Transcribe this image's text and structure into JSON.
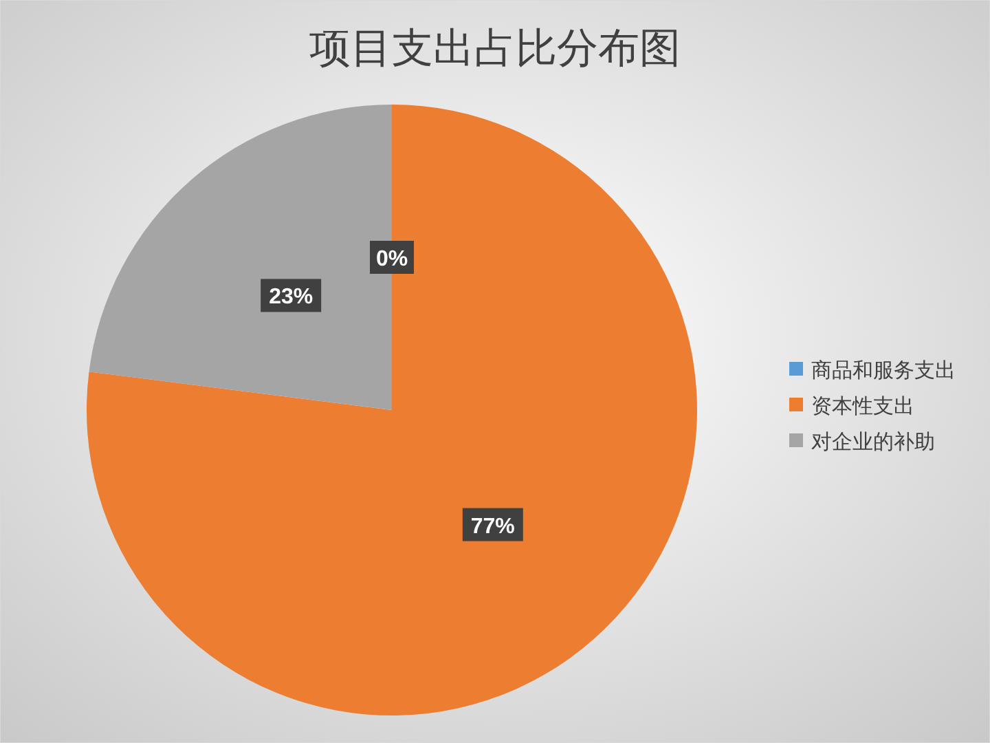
{
  "chart_data": {
    "type": "pie",
    "title": "项目支出占比分布图",
    "categories": [
      "商品和服务支出",
      "资本性支出",
      "对企业的补助"
    ],
    "values": [
      0,
      77,
      23
    ],
    "colors": [
      "#5b9bd5",
      "#ed7d31",
      "#a5a5a5"
    ],
    "value_labels": [
      "0%",
      "77%",
      "23%"
    ],
    "legend": "right"
  }
}
